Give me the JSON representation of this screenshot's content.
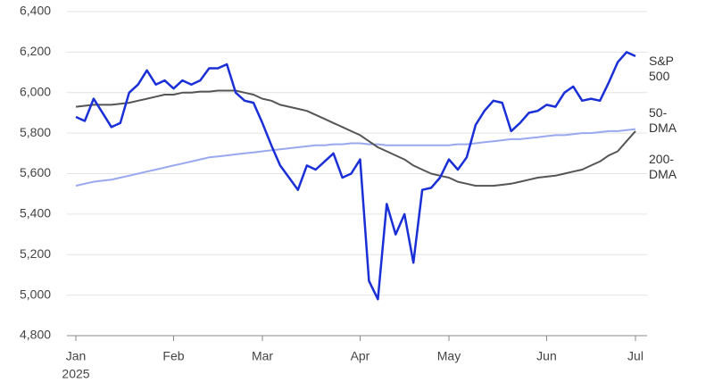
{
  "chart_data": {
    "type": "line",
    "categories": [
      "Jan",
      null,
      null,
      null,
      null,
      null,
      null,
      null,
      null,
      null,
      null,
      "Feb",
      null,
      null,
      null,
      null,
      null,
      null,
      null,
      null,
      null,
      "Mar",
      null,
      null,
      null,
      null,
      null,
      null,
      null,
      null,
      null,
      null,
      "Apr",
      null,
      null,
      null,
      null,
      null,
      null,
      null,
      null,
      null,
      "May",
      null,
      null,
      null,
      null,
      null,
      null,
      null,
      null,
      null,
      null,
      "Jun",
      null,
      null,
      null,
      null,
      null,
      null,
      null,
      null,
      null,
      "Jul"
    ],
    "year_label": "2025",
    "series": [
      {
        "name": "S&P 500",
        "color": "#1a2fd6",
        "values": [
          5880,
          5860,
          5970,
          5900,
          5830,
          5850,
          6000,
          6040,
          6110,
          6040,
          6060,
          6020,
          6060,
          6040,
          6060,
          6120,
          6120,
          6140,
          6000,
          5960,
          5950,
          5850,
          5740,
          5640,
          5580,
          5520,
          5640,
          5620,
          5660,
          5700,
          5580,
          5600,
          5670,
          5070,
          4980,
          5450,
          5300,
          5400,
          5160,
          5520,
          5530,
          5580,
          5670,
          5620,
          5680,
          5840,
          5910,
          5960,
          5950,
          5810,
          5850,
          5900,
          5910,
          5940,
          5930,
          6000,
          6030,
          5960,
          5970,
          5960,
          6050,
          6150,
          6200,
          6180
        ]
      },
      {
        "name": "50-DMA",
        "color": "#555555",
        "values": [
          5930,
          5935,
          5940,
          5940,
          5940,
          5945,
          5950,
          5960,
          5970,
          5980,
          5990,
          5990,
          6000,
          6000,
          6005,
          6005,
          6010,
          6010,
          6010,
          6000,
          5990,
          5970,
          5960,
          5940,
          5930,
          5920,
          5910,
          5890,
          5870,
          5850,
          5830,
          5810,
          5790,
          5760,
          5730,
          5710,
          5690,
          5670,
          5640,
          5620,
          5600,
          5590,
          5580,
          5560,
          5550,
          5540,
          5540,
          5540,
          5545,
          5550,
          5560,
          5570,
          5580,
          5585,
          5590,
          5600,
          5610,
          5620,
          5640,
          5660,
          5690,
          5710,
          5760,
          5810
        ]
      },
      {
        "name": "200-DMA",
        "color": "#9aa8f0",
        "values": [
          5540,
          5550,
          5560,
          5565,
          5570,
          5580,
          5590,
          5600,
          5610,
          5620,
          5630,
          5640,
          5650,
          5660,
          5670,
          5680,
          5685,
          5690,
          5695,
          5700,
          5705,
          5710,
          5715,
          5720,
          5725,
          5730,
          5735,
          5740,
          5740,
          5745,
          5745,
          5750,
          5750,
          5745,
          5745,
          5740,
          5740,
          5740,
          5740,
          5740,
          5740,
          5740,
          5740,
          5745,
          5745,
          5750,
          5755,
          5760,
          5765,
          5770,
          5770,
          5775,
          5780,
          5785,
          5790,
          5790,
          5795,
          5800,
          5800,
          5805,
          5810,
          5810,
          5815,
          5820
        ]
      }
    ],
    "ylim": [
      4800,
      6400
    ],
    "yticks": [
      {
        "value": 4800,
        "label": "4,800"
      },
      {
        "value": 5000,
        "label": "5,000"
      },
      {
        "value": 5200,
        "label": "5,200"
      },
      {
        "value": 5400,
        "label": "5,400"
      },
      {
        "value": 5600,
        "label": "5,600"
      },
      {
        "value": 5800,
        "label": "5,800"
      },
      {
        "value": 6000,
        "label": "6,000"
      },
      {
        "value": 6200,
        "label": "6,200"
      },
      {
        "value": 6400,
        "label": "6,400"
      }
    ],
    "grid": true
  }
}
